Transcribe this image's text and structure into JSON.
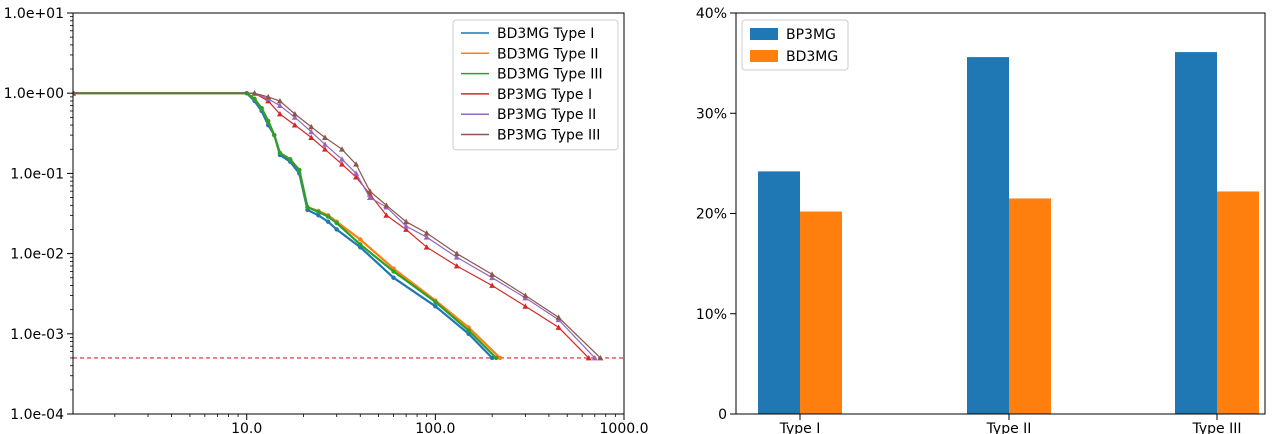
{
  "chart_data": [
    {
      "type": "line",
      "xscale": "log",
      "yscale": "log",
      "xlim": [
        1.2,
        1000
      ],
      "ylim": [
        0.0001,
        10
      ],
      "xticks": [
        10,
        100,
        1000
      ],
      "xtick_labels": [
        "10.0",
        "100.0",
        "1000.0"
      ],
      "yticks": [
        10,
        1,
        0.1,
        0.01,
        0.001,
        0.0001
      ],
      "ytick_labels": [
        "1.0e+01",
        "1.0e+00",
        "1.0e-01",
        "1.0e-02",
        "1.0e-03",
        "1.0e-04"
      ],
      "legend_position": "top-right",
      "threshold": {
        "y": 0.0005,
        "color": "#d62728",
        "style": "dashed"
      },
      "series": [
        {
          "name": "BD3MG Type I",
          "color": "#1f77b4",
          "x": [
            1.2,
            10,
            11,
            12,
            13,
            14,
            15,
            17,
            19,
            21,
            24,
            27,
            30,
            40,
            60,
            100,
            150,
            200
          ],
          "y": [
            1,
            1,
            0.8,
            0.6,
            0.4,
            0.3,
            0.17,
            0.14,
            0.1,
            0.035,
            0.03,
            0.025,
            0.02,
            0.012,
            0.005,
            0.0022,
            0.001,
            0.0005
          ]
        },
        {
          "name": "BD3MG Type II",
          "color": "#ff7f0e",
          "x": [
            1.2,
            10,
            11,
            12,
            13,
            14,
            15,
            17,
            19,
            21,
            24,
            27,
            30,
            40,
            60,
            100,
            150,
            220
          ],
          "y": [
            1,
            1,
            0.85,
            0.65,
            0.45,
            0.3,
            0.18,
            0.15,
            0.11,
            0.038,
            0.034,
            0.03,
            0.025,
            0.015,
            0.0065,
            0.0026,
            0.0012,
            0.0005
          ]
        },
        {
          "name": "BD3MG Type III",
          "color": "#2ca02c",
          "x": [
            1.2,
            10,
            11,
            12,
            13,
            14,
            15,
            17,
            19,
            21,
            24,
            27,
            30,
            40,
            60,
            100,
            150,
            210
          ],
          "y": [
            1,
            1,
            0.85,
            0.65,
            0.45,
            0.3,
            0.18,
            0.15,
            0.11,
            0.038,
            0.033,
            0.029,
            0.024,
            0.013,
            0.006,
            0.0025,
            0.0011,
            0.0005
          ]
        },
        {
          "name": "BP3MG Type I",
          "color": "#d62728",
          "x": [
            1.2,
            11,
            13,
            15,
            18,
            22,
            26,
            32,
            38,
            45,
            55,
            70,
            90,
            130,
            200,
            300,
            450,
            650
          ],
          "y": [
            1,
            1,
            0.8,
            0.55,
            0.4,
            0.28,
            0.2,
            0.13,
            0.09,
            0.055,
            0.03,
            0.02,
            0.012,
            0.007,
            0.004,
            0.0022,
            0.0012,
            0.0005
          ]
        },
        {
          "name": "BP3MG Type II",
          "color": "#9467bd",
          "x": [
            1.2,
            11,
            13,
            15,
            18,
            22,
            26,
            32,
            38,
            45,
            55,
            70,
            90,
            130,
            200,
            300,
            450,
            700
          ],
          "y": [
            1,
            1,
            0.85,
            0.7,
            0.5,
            0.33,
            0.23,
            0.15,
            0.1,
            0.05,
            0.038,
            0.022,
            0.016,
            0.009,
            0.005,
            0.0028,
            0.0015,
            0.0005
          ]
        },
        {
          "name": "BP3MG Type III",
          "color": "#8c564b",
          "x": [
            1.2,
            11,
            13,
            15,
            18,
            22,
            26,
            32,
            38,
            45,
            55,
            70,
            90,
            130,
            200,
            300,
            450,
            750
          ],
          "y": [
            1,
            1,
            0.9,
            0.8,
            0.55,
            0.38,
            0.28,
            0.2,
            0.13,
            0.06,
            0.04,
            0.025,
            0.018,
            0.01,
            0.0055,
            0.003,
            0.0016,
            0.0005
          ]
        }
      ]
    },
    {
      "type": "bar",
      "categories": [
        "Type I",
        "Type II",
        "Type III"
      ],
      "ylim": [
        0,
        40
      ],
      "yticks": [
        0,
        10,
        20,
        30,
        40
      ],
      "ytick_labels": [
        "0",
        "10%",
        "20%",
        "30%",
        "40%"
      ],
      "legend_position": "top-left",
      "series": [
        {
          "name": "BP3MG",
          "color": "#1f77b4",
          "values": [
            24.2,
            35.6,
            36.1
          ]
        },
        {
          "name": "BD3MG",
          "color": "#ff7f0e",
          "values": [
            20.2,
            21.5,
            22.2
          ]
        }
      ]
    }
  ]
}
